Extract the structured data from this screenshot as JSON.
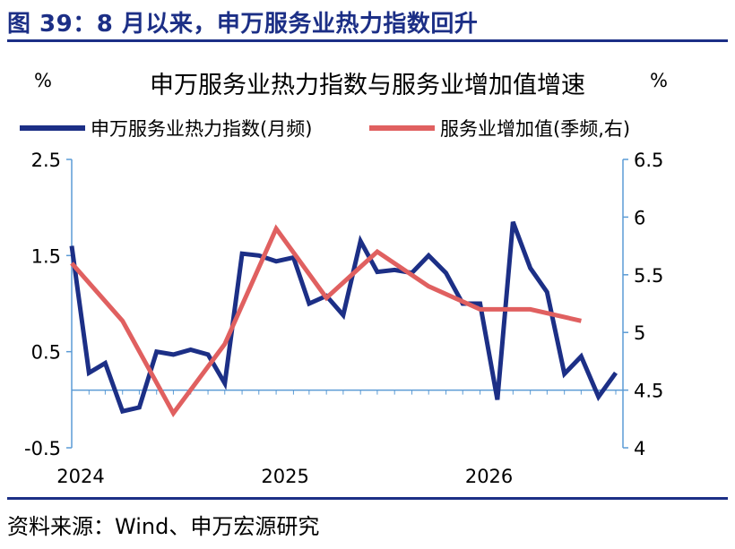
{
  "figure": {
    "title": "图 39：8 月以来，申万服务业热力指数回升",
    "source": "资料来源：Wind、申万宏源研究"
  },
  "chart_data": {
    "type": "line",
    "title": "申万服务业热力指数与服务业增加值增速",
    "left_unit": "%",
    "right_unit": "%",
    "legend_position": "top",
    "grid": false,
    "x_tick_labels": [
      "2024",
      "2025",
      "2026"
    ],
    "y_left": {
      "lim": [
        -0.5,
        2.5
      ],
      "ticks": [
        "2.5",
        "1.5",
        "0.5",
        "-0.5"
      ]
    },
    "y_right": {
      "lim": [
        4,
        6.5
      ],
      "ticks": [
        "6.5",
        "6",
        "5.5",
        "5",
        "4.5",
        "4"
      ]
    },
    "baseline_right": 4.5,
    "series": [
      {
        "name": "申万服务业热力指数(月频)",
        "axis": "left",
        "color": "#1c2f86",
        "x": [
          "2024-01",
          "2024-02",
          "2024-03",
          "2024-04",
          "2024-05",
          "2024-06",
          "2024-07",
          "2024-08",
          "2024-09",
          "2024-10",
          "2024-11",
          "2024-12",
          "2025-01",
          "2025-02",
          "2025-03",
          "2025-04",
          "2025-05",
          "2025-06",
          "2025-07",
          "2025-08",
          "2025-09",
          "2025-10",
          "2025-11",
          "2025-12",
          "2026-01",
          "2026-02",
          "2026-03",
          "2026-04",
          "2026-05",
          "2026-06",
          "2026-07",
          "2026-08",
          "2026-09"
        ],
        "values": [
          1.6,
          0.28,
          0.38,
          -0.12,
          -0.08,
          0.5,
          0.47,
          0.52,
          0.47,
          0.17,
          1.52,
          1.5,
          1.44,
          1.48,
          1.0,
          1.08,
          0.88,
          1.65,
          1.33,
          1.35,
          1.32,
          1.5,
          1.32,
          1.0,
          1.0,
          0.0,
          1.85,
          1.37,
          1.12,
          0.27,
          0.45,
          0.03,
          0.28
        ]
      },
      {
        "name": "服务业增加值(季频,右)",
        "axis": "right",
        "color": "#e06060",
        "x": [
          "2024-01",
          "2024-04",
          "2024-07",
          "2024-10",
          "2025-01",
          "2025-04",
          "2025-07",
          "2025-10",
          "2026-01",
          "2026-04",
          "2026-07"
        ],
        "values": [
          5.6,
          5.1,
          4.3,
          4.9,
          5.9,
          5.3,
          5.7,
          5.4,
          5.2,
          5.2,
          5.1
        ]
      }
    ]
  }
}
